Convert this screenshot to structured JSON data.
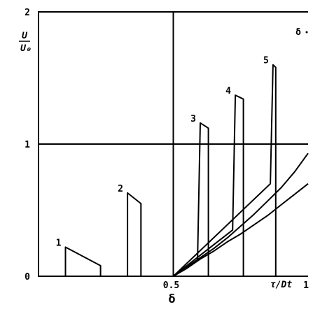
{
  "chart_data": {
    "type": "line",
    "ylabel_numerator": "U",
    "ylabel_denominator": "U₀",
    "xlabel": "δ",
    "corner_label": "δ",
    "x_end_label": "τ/Dt",
    "xlim": [
      0,
      1
    ],
    "ylim": [
      0,
      2
    ],
    "x_ticks": [
      {
        "value": 0.5,
        "label": "0.5"
      },
      {
        "value": 1,
        "label": "1"
      }
    ],
    "y_ticks": [
      {
        "value": 0,
        "label": "0"
      },
      {
        "value": 1,
        "label": "1"
      },
      {
        "value": 2,
        "label": "2"
      }
    ],
    "grid": {
      "vertical_at": [
        0.5
      ],
      "horizontal_at": [
        1
      ]
    },
    "pulses": [
      {
        "name": "1",
        "points": [
          [
            0.1,
            0
          ],
          [
            0.1,
            0.22
          ],
          [
            0.23,
            0.08
          ],
          [
            0.23,
            0
          ]
        ]
      },
      {
        "name": "2",
        "points": [
          [
            0.33,
            0
          ],
          [
            0.33,
            0.63
          ],
          [
            0.38,
            0.55
          ],
          [
            0.38,
            0
          ]
        ]
      },
      {
        "name": "3",
        "points": [
          [
            0.5,
            0
          ],
          [
            0.59,
            0.12
          ],
          [
            0.6,
            1.16
          ],
          [
            0.63,
            1.12
          ],
          [
            0.63,
            0
          ]
        ]
      },
      {
        "name": "4",
        "points": [
          [
            0.5,
            0
          ],
          [
            0.72,
            0.35
          ],
          [
            0.73,
            1.37
          ],
          [
            0.76,
            1.34
          ],
          [
            0.76,
            0
          ]
        ]
      },
      {
        "name": "5",
        "points": [
          [
            0.5,
            0
          ],
          [
            0.86,
            0.7
          ],
          [
            0.87,
            1.6
          ],
          [
            0.88,
            1.58
          ],
          [
            0.88,
            0
          ]
        ]
      }
    ],
    "envelope_curves": [
      {
        "points": [
          [
            0.5,
            0
          ],
          [
            0.55,
            0.07
          ],
          [
            0.6,
            0.14
          ],
          [
            0.65,
            0.21
          ],
          [
            0.7,
            0.29
          ],
          [
            0.75,
            0.38
          ],
          [
            0.8,
            0.47
          ],
          [
            0.85,
            0.57
          ],
          [
            0.9,
            0.67
          ],
          [
            0.95,
            0.79
          ],
          [
            1.0,
            0.93
          ]
        ]
      },
      {
        "points": [
          [
            0.5,
            0
          ],
          [
            0.55,
            0.06
          ],
          [
            0.6,
            0.13
          ],
          [
            0.65,
            0.19
          ],
          [
            0.7,
            0.26
          ],
          [
            0.75,
            0.32
          ],
          [
            0.8,
            0.39
          ],
          [
            0.85,
            0.46
          ],
          [
            0.9,
            0.54
          ],
          [
            0.95,
            0.62
          ],
          [
            1.0,
            0.7
          ]
        ]
      }
    ]
  }
}
